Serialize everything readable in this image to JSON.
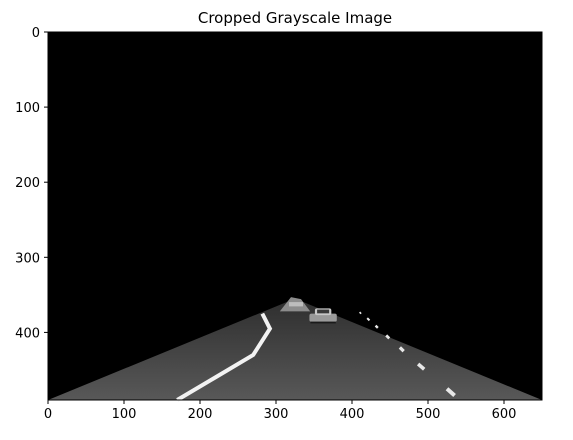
{
  "chart_data": {
    "type": "image",
    "title": "Cropped Grayscale Image",
    "xlabel": "",
    "ylabel": "",
    "xlim": [
      0,
      650
    ],
    "ylim": [
      490,
      0
    ],
    "xticks": [
      0,
      100,
      200,
      300,
      400,
      500,
      600
    ],
    "yticks": [
      0,
      100,
      200,
      300,
      400
    ],
    "grid": false,
    "colormap": "gray",
    "image_region": {
      "polygon": [
        [
          0,
          490
        ],
        [
          650,
          490
        ],
        [
          325,
          355
        ]
      ],
      "background": "#000000",
      "road_color": "#4a4a4a"
    },
    "lane_markings": {
      "solid_left": [
        [
          170,
          490
        ],
        [
          220,
          460
        ],
        [
          270,
          430
        ],
        [
          292,
          395
        ],
        [
          282,
          375
        ]
      ],
      "dashed_right": [
        [
          [
            525,
            475
          ],
          [
            535,
            484
          ]
        ],
        [
          [
            487,
            442
          ],
          [
            495,
            449
          ]
        ],
        [
          [
            463,
            420
          ],
          [
            468,
            425
          ]
        ],
        [
          [
            445,
            404
          ],
          [
            449,
            408
          ]
        ],
        [
          [
            431,
            391
          ],
          [
            434,
            394
          ]
        ],
        [
          [
            420,
            381
          ],
          [
            423,
            384
          ]
        ],
        [
          [
            410,
            373
          ],
          [
            412,
            375
          ]
        ]
      ]
    },
    "objects": [
      {
        "label": "car",
        "x": [
          344,
          380
        ],
        "y": [
          368,
          388
        ]
      },
      {
        "label": "distant-vehicles",
        "x": [
          305,
          345
        ],
        "y": [
          353,
          372
        ]
      }
    ]
  }
}
